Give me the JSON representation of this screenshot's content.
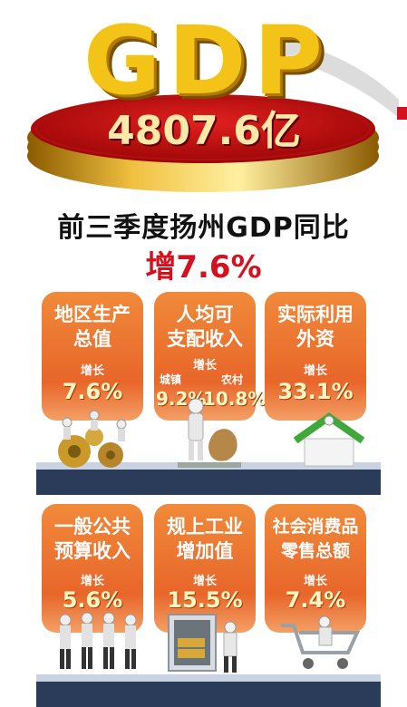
{
  "hero": {
    "word": "GDP",
    "value": "4807.6亿"
  },
  "headline": "前三季度扬州GDP同比",
  "growth": "增7.6%",
  "cards": [
    {
      "title_line1": "地区生产",
      "title_line2": "总值",
      "label": "增长",
      "value": "7.6%"
    },
    {
      "title_line1": "人均可",
      "title_line2": "支配收入",
      "label": "增长",
      "sub_a_label": "城镇",
      "sub_a_value": "9.2%",
      "sub_b_label": "农村",
      "sub_b_value": "10.8%"
    },
    {
      "title_line1": "实际利用",
      "title_line2": "外资",
      "label": "增长",
      "value": "33.1%"
    },
    {
      "title_line1": "一般公共",
      "title_line2": "预算收入",
      "label": "增长",
      "value": "5.6%"
    },
    {
      "title_line1": "规上工业",
      "title_line2": "增加值",
      "label": "增长",
      "value": "15.5%"
    },
    {
      "title_line1": "社会消费品",
      "title_line2": "零售总额",
      "label": "增长",
      "value": "7.4%"
    }
  ],
  "colors": {
    "accent_red": "#d4121f",
    "card_orange": "#e8662a",
    "gold": "#f3c318",
    "band_navy": "#2a3c5a"
  },
  "icons": [
    "gold-coin-icon",
    "gears-people-icon",
    "money-bag-icon",
    "house-icon",
    "team-icon",
    "safe-icon",
    "shopping-cart-icon"
  ]
}
